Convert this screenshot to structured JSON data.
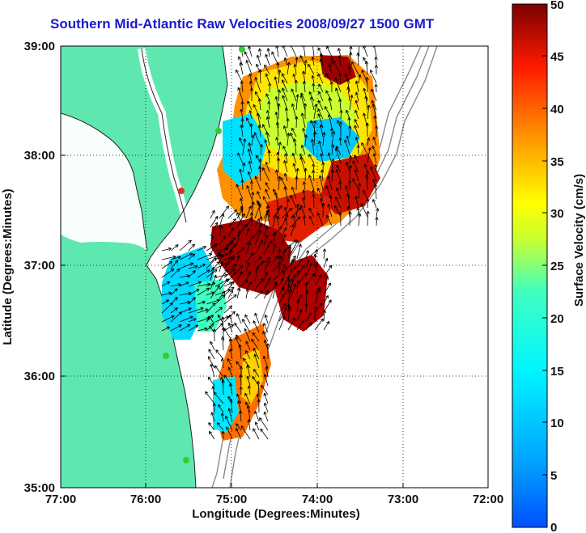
{
  "title": "Southern Mid-Atlantic Raw Velocities 2008/09/27 1500 GMT",
  "x_axis": {
    "label": "Longitude (Degrees:Minutes)",
    "ticks": [
      "77:00",
      "76:00",
      "75:00",
      "74:00",
      "73:00",
      "72:00"
    ]
  },
  "y_axis": {
    "label": "Latitude (Degrees:Minutes)",
    "ticks": [
      "39:00",
      "38:00",
      "37:00",
      "36:00",
      "35:00"
    ]
  },
  "colorbar": {
    "label": "Surface Velocity (cm/s)",
    "min": 0,
    "max": 50,
    "ticks": [
      "50",
      "45",
      "40",
      "35",
      "30",
      "25",
      "20",
      "15",
      "10",
      "5",
      "0"
    ],
    "colormap": "jet"
  },
  "map": {
    "lon_range": [
      -77,
      -72
    ],
    "lat_range": [
      35,
      39
    ],
    "land_color": "#5ee8b0",
    "grid": "dotted",
    "stations_color": "#33cc33",
    "station_highlight_color": "#e03020"
  },
  "chart_data": {
    "type": "heatmap",
    "title": "Southern Mid-Atlantic Raw Velocities 2008/09/27 1500 GMT",
    "xlabel": "Longitude (Degrees:Minutes)",
    "ylabel": "Latitude (Degrees:Minutes)",
    "xlim": [
      -77,
      -72
    ],
    "ylim": [
      35,
      39
    ],
    "value_range": [
      0,
      50
    ],
    "value_label": "Surface Velocity (cm/s)",
    "grid": true
  }
}
